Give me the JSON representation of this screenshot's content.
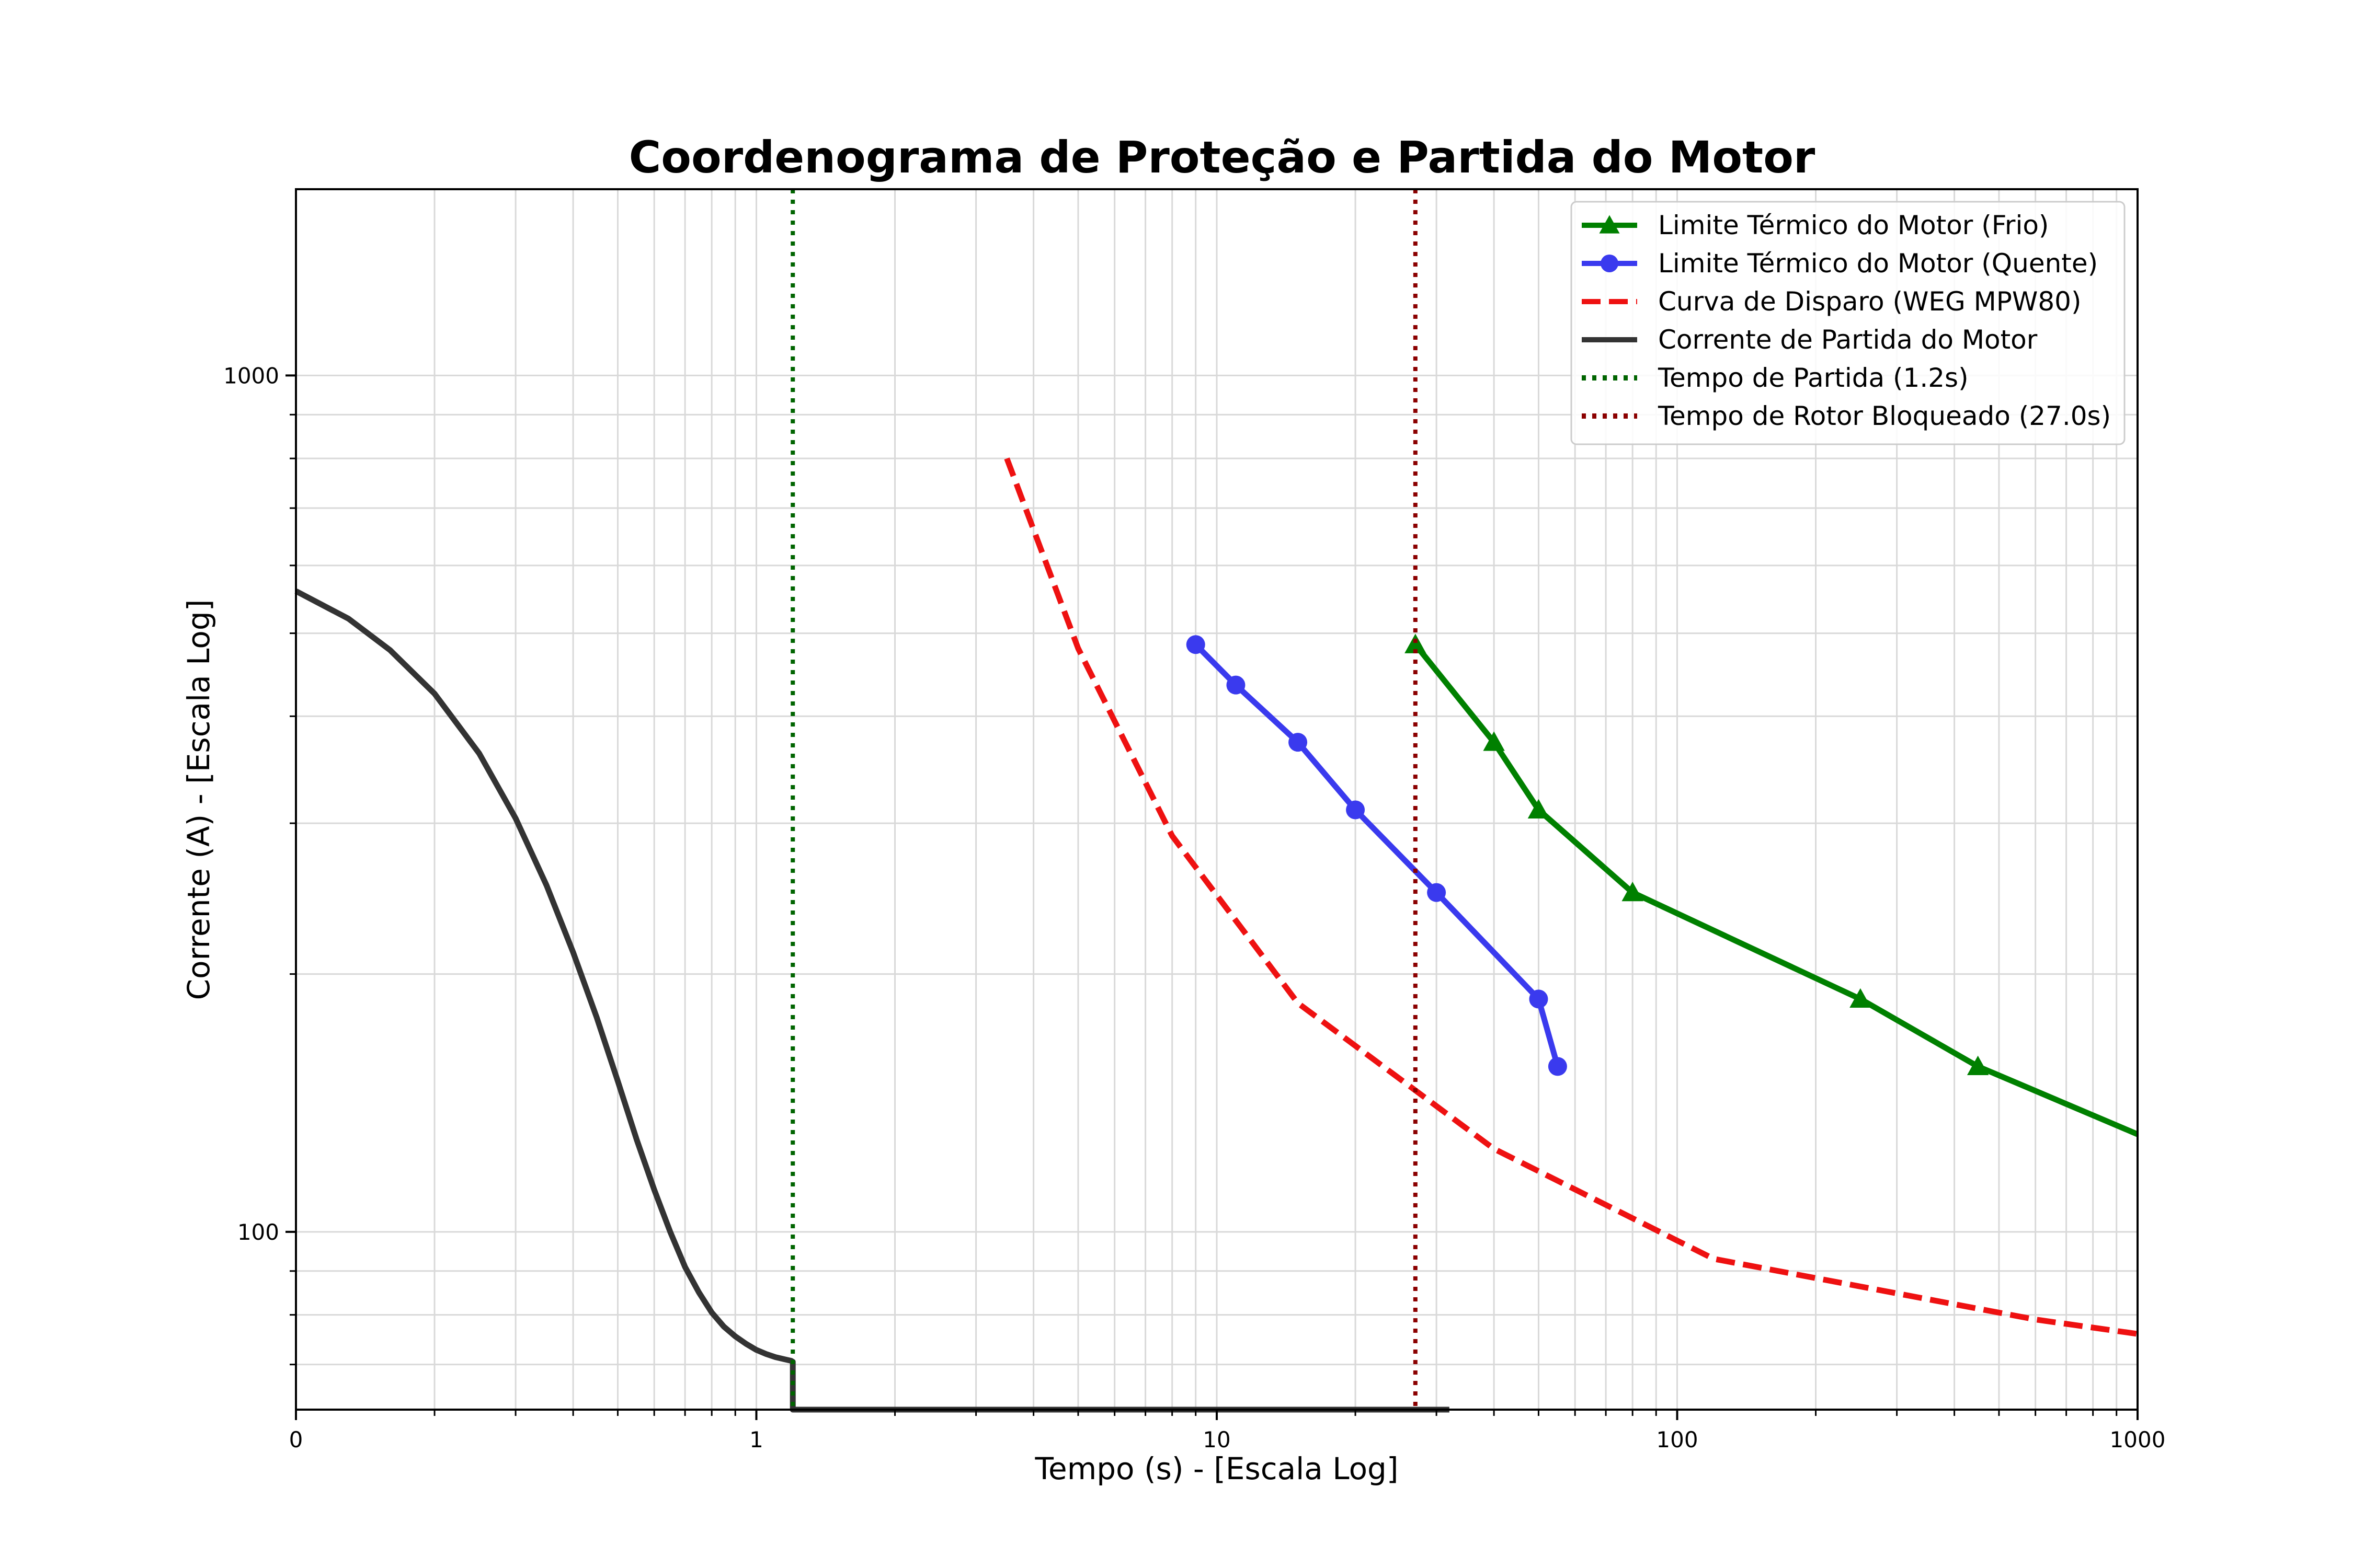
{
  "chart_data": {
    "type": "line",
    "title": "Coordenograma de Proteção e Partida do Motor",
    "xlabel": "Tempo (s) - [Escala Log]",
    "ylabel": "Corrente (A) - [Escala Log]",
    "xscale": "log",
    "yscale": "log",
    "xlim": [
      0.1,
      1000
    ],
    "ylim": [
      62,
      1650
    ],
    "xticks": [
      {
        "value": 0.1,
        "label": "0"
      },
      {
        "value": 1,
        "label": "1"
      },
      {
        "value": 10,
        "label": "10"
      },
      {
        "value": 100,
        "label": "100"
      },
      {
        "value": 1000,
        "label": "1000"
      }
    ],
    "yticks": [
      {
        "value": 100,
        "label": "100"
      },
      {
        "value": 1000,
        "label": "1000"
      }
    ],
    "grid": true,
    "legend_position": "top-right",
    "series": [
      {
        "name": "Limite Térmico do Motor (Frio)",
        "color": "#008000",
        "style": "solid",
        "marker": "triangle",
        "x": [
          27,
          40,
          50,
          80,
          250,
          450,
          1000
        ],
        "y": [
          485,
          373,
          311,
          249,
          187,
          156,
          130
        ]
      },
      {
        "name": "Limite Térmico do Motor (Quente)",
        "color": "#3a3aee",
        "style": "solid",
        "marker": "circle",
        "x": [
          9,
          11,
          15,
          20,
          30,
          50,
          55
        ],
        "y": [
          485,
          435,
          373,
          311,
          249,
          187,
          156
        ]
      },
      {
        "name": "Curva de Disparo (WEG MPW80)",
        "color": "#ee1111",
        "style": "dashed",
        "marker": "none",
        "x": [
          3.5,
          5,
          8,
          15,
          40,
          120,
          600,
          1000
        ],
        "y": [
          800,
          480,
          290,
          185,
          125,
          93,
          79,
          76
        ]
      },
      {
        "name": "Corrente de Partida do Motor",
        "color": "#333333",
        "style": "solid",
        "marker": "none",
        "x": [
          0.1,
          0.13,
          0.16,
          0.2,
          0.25,
          0.3,
          0.35,
          0.4,
          0.45,
          0.5,
          0.55,
          0.6,
          0.65,
          0.7,
          0.75,
          0.8,
          0.85,
          0.9,
          0.95,
          1.0,
          1.05,
          1.1,
          1.15,
          1.19,
          1.2,
          1.2,
          32
        ],
        "y": [
          560,
          520,
          478,
          425,
          362,
          304,
          254,
          212,
          178,
          150,
          128,
          112,
          100,
          91,
          85,
          80.5,
          77.5,
          75.5,
          74,
          72.8,
          72,
          71.4,
          71,
          70.7,
          70.5,
          62,
          62
        ]
      },
      {
        "name": "Tempo de Partida (1.2s)",
        "color": "#006400",
        "style": "dotted",
        "marker": "none",
        "vline": 1.2
      },
      {
        "name": "Tempo de Rotor Bloqueado (27.0s)",
        "color": "#8b0000",
        "style": "dotted",
        "marker": "none",
        "vline": 27
      }
    ]
  }
}
